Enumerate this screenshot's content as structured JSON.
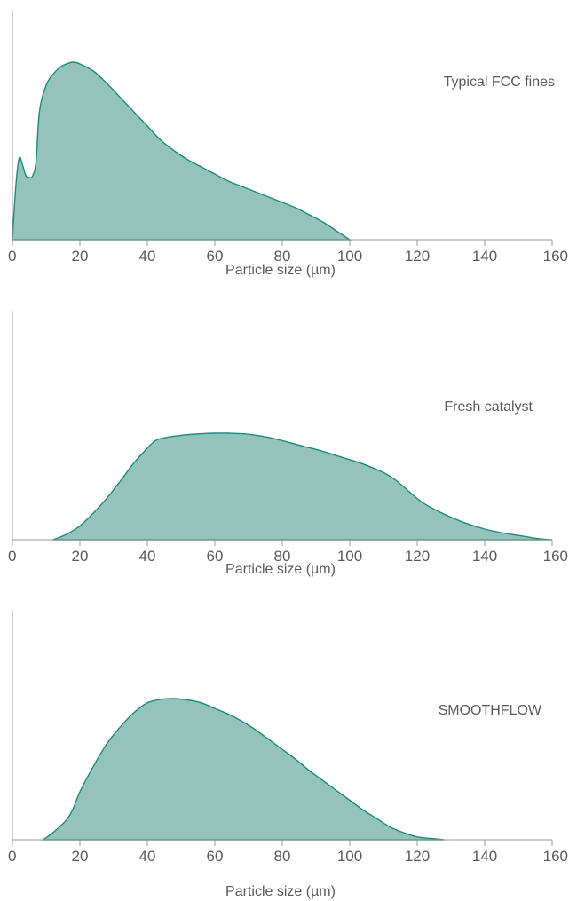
{
  "chart_data": [
    {
      "type": "area",
      "series_label": "Typical FCC fines",
      "xlabel": "Particle size (µm)",
      "xlim": [
        0,
        160
      ],
      "ylim": [
        0,
        1
      ],
      "xticks": [
        0,
        20,
        40,
        60,
        80,
        100,
        120,
        140,
        160
      ],
      "grid": false,
      "color": "#93c3bb",
      "line_color": "#1d8a7e",
      "x": [
        0,
        1,
        2,
        3,
        4,
        5,
        6,
        7,
        8,
        10,
        12,
        14,
        16,
        18,
        20,
        24,
        28,
        32,
        36,
        40,
        44,
        48,
        52,
        56,
        60,
        64,
        68,
        72,
        76,
        80,
        84,
        88,
        92,
        96,
        100
      ],
      "y": [
        0,
        0.3,
        0.46,
        0.42,
        0.36,
        0.35,
        0.36,
        0.44,
        0.72,
        0.87,
        0.93,
        0.97,
        0.99,
        1.0,
        0.99,
        0.95,
        0.88,
        0.8,
        0.72,
        0.64,
        0.56,
        0.5,
        0.45,
        0.41,
        0.37,
        0.33,
        0.3,
        0.27,
        0.24,
        0.21,
        0.18,
        0.14,
        0.1,
        0.05,
        0
      ]
    },
    {
      "type": "area",
      "series_label": "Fresh catalyst",
      "xlabel": "Particle size (µm)",
      "xlim": [
        0,
        160
      ],
      "ylim": [
        0,
        1
      ],
      "xticks": [
        0,
        20,
        40,
        60,
        80,
        100,
        120,
        140,
        160
      ],
      "grid": false,
      "color": "#93c3bb",
      "line_color": "#1d8a7e",
      "x": [
        12,
        16,
        20,
        24,
        28,
        32,
        36,
        40,
        42,
        44,
        50,
        56,
        60,
        64,
        70,
        76,
        80,
        86,
        92,
        98,
        104,
        110,
        114,
        118,
        122,
        128,
        134,
        140,
        146,
        152,
        156,
        160
      ],
      "y": [
        0,
        0.05,
        0.13,
        0.25,
        0.39,
        0.55,
        0.72,
        0.86,
        0.92,
        0.95,
        0.98,
        0.995,
        1.0,
        1.0,
        0.99,
        0.96,
        0.93,
        0.88,
        0.83,
        0.77,
        0.71,
        0.63,
        0.55,
        0.44,
        0.34,
        0.24,
        0.16,
        0.1,
        0.06,
        0.03,
        0.01,
        0
      ]
    },
    {
      "type": "area",
      "series_label": "SMOOTHFLOW",
      "xlabel": "Particle size (µm)",
      "xlim": [
        0,
        160
      ],
      "ylim": [
        0,
        1
      ],
      "xticks": [
        0,
        20,
        40,
        60,
        80,
        100,
        120,
        140,
        160
      ],
      "grid": false,
      "color": "#93c3bb",
      "line_color": "#1d8a7e",
      "x": [
        9,
        12,
        16,
        18,
        20,
        24,
        28,
        32,
        36,
        40,
        44,
        48,
        52,
        56,
        60,
        64,
        68,
        72,
        76,
        80,
        84,
        88,
        92,
        96,
        100,
        104,
        108,
        112,
        116,
        120,
        124,
        128
      ],
      "y": [
        0,
        0.05,
        0.14,
        0.22,
        0.34,
        0.52,
        0.68,
        0.8,
        0.9,
        0.97,
        0.995,
        1.0,
        0.99,
        0.97,
        0.93,
        0.89,
        0.84,
        0.78,
        0.71,
        0.64,
        0.57,
        0.49,
        0.42,
        0.35,
        0.28,
        0.21,
        0.15,
        0.09,
        0.05,
        0.02,
        0.01,
        0
      ]
    }
  ]
}
